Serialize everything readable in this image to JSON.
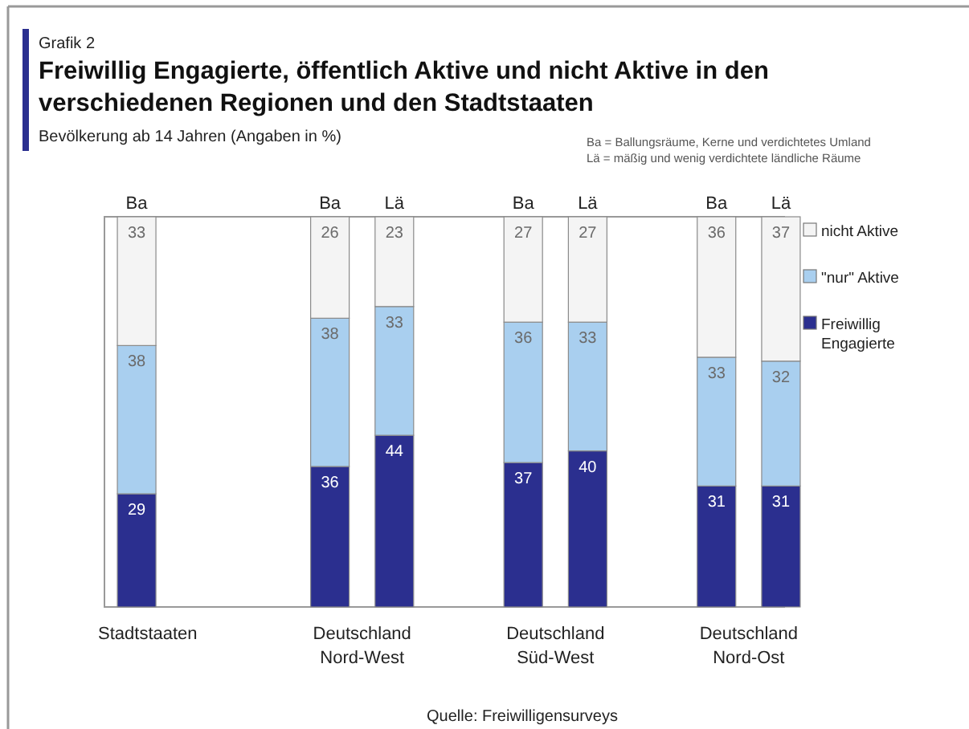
{
  "chart_data": {
    "type": "bar",
    "stacked": true,
    "data_labels": true,
    "legend": "right",
    "title": "Freiwillig Engagierte, öffentlich Aktive und nicht Aktive in den verschiedenen Regionen und den Stadtstaaten",
    "subtitle": "Bevölkerung ab 14 Jahren (Angaben in %)",
    "categories": [
      "Ba",
      null,
      null,
      "Ba",
      "Lä",
      null,
      "Ba",
      "Lä",
      null,
      "Ba",
      "Lä"
    ],
    "series": [
      {
        "name": "Freiwillig Engagierte",
        "color": "#2b2f8f",
        "values": [
          29,
          null,
          null,
          36,
          44,
          null,
          37,
          40,
          null,
          31,
          31
        ]
      },
      {
        "name": "\"nur\" Aktive",
        "color": "#a9cfef",
        "values": [
          38,
          null,
          null,
          38,
          33,
          null,
          36,
          33,
          null,
          33,
          32
        ]
      },
      {
        "name": "nicht Aktive",
        "color": "#f4f4f4",
        "values": [
          33,
          null,
          null,
          26,
          23,
          null,
          27,
          27,
          null,
          36,
          37
        ]
      }
    ],
    "annotations": [
      "Grafik 2",
      "Ba = Ballungsräume, Kerne und verdichtetes Umland",
      "Lä = mäßig und wenig verdichtete ländliche Räume",
      "Stadtstaaten",
      "Deutschland Nord-West",
      "Deutschland Süd-West",
      "Deutschland Nord-Ost",
      "Quelle: Freiwilligensurveys"
    ]
  }
}
